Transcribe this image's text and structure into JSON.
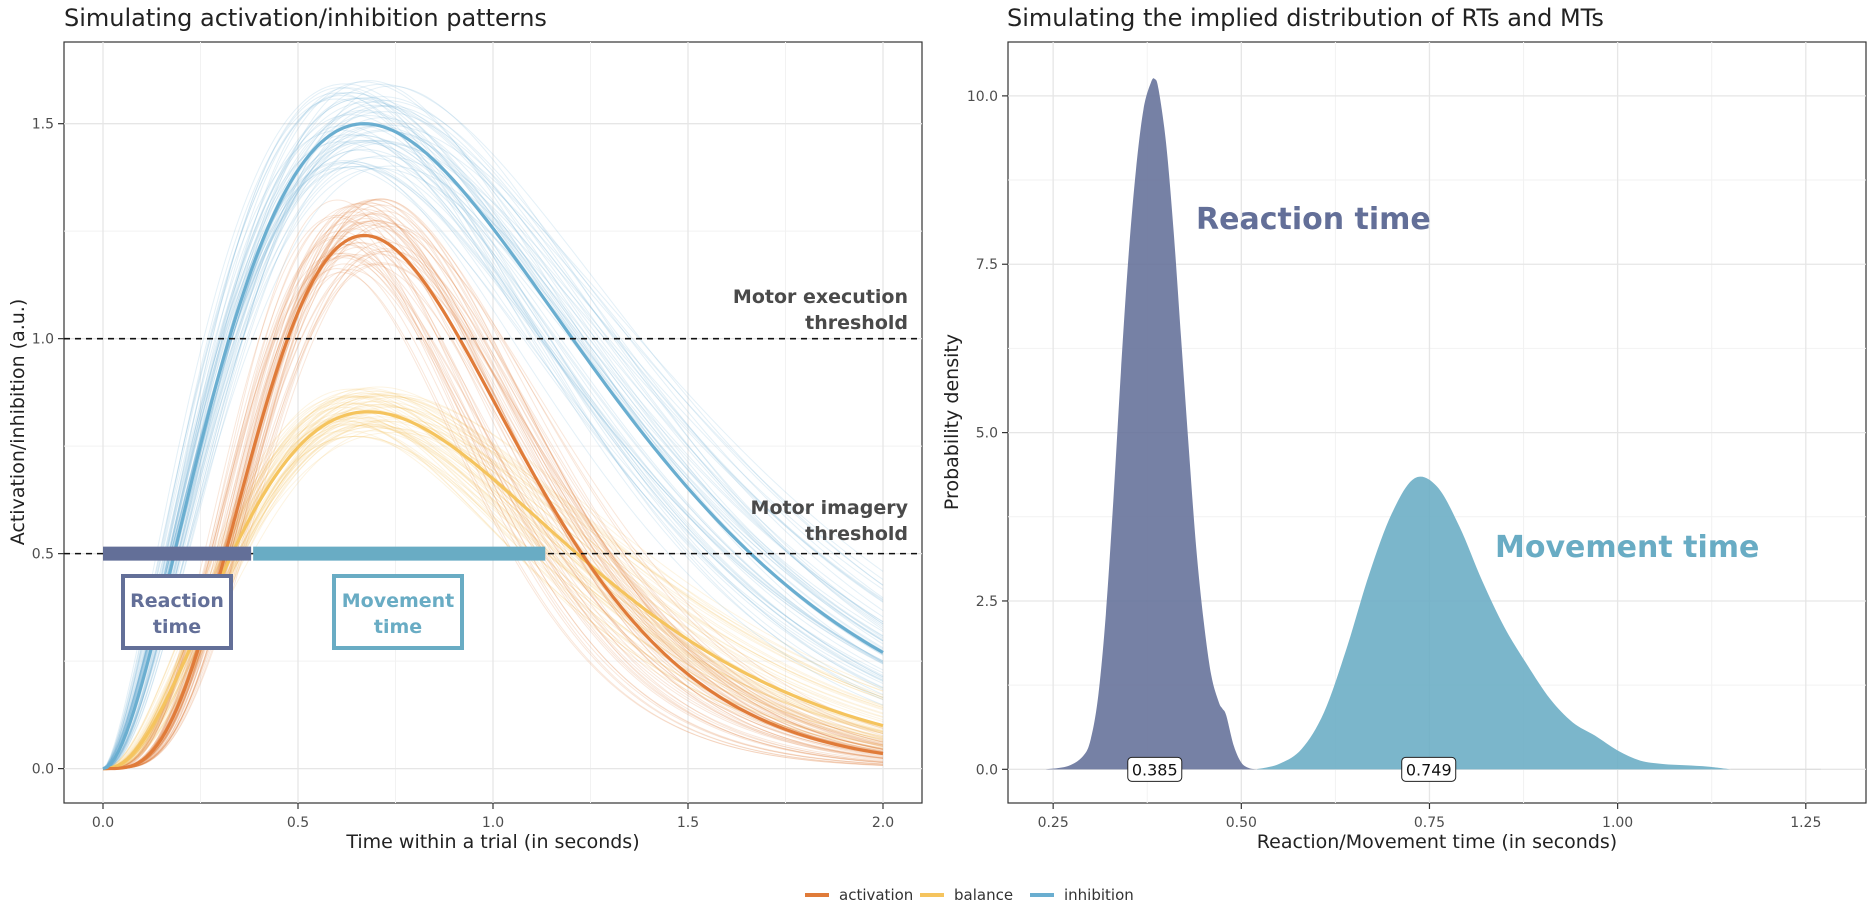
{
  "colors": {
    "activation": "#e07b39",
    "balance": "#f5c45e",
    "inhibition": "#6aaed0",
    "reaction": "#636f98",
    "movement": "#69acc4"
  },
  "chart_data": [
    {
      "type": "line",
      "title": "Simulating activation/inhibition patterns",
      "xlabel": "Time within a trial (in seconds)",
      "ylabel": "Activation/inhibition (a.u.)",
      "xlim": [
        -0.1,
        2.1
      ],
      "ylim": [
        -0.08,
        1.69
      ],
      "xticks": [
        0,
        0.5,
        1,
        1.5,
        2
      ],
      "xtick_labels": [
        "0.0",
        "0.5",
        "1.0",
        "1.5",
        "2.0"
      ],
      "yticks": [
        0,
        0.5,
        1,
        1.5
      ],
      "ytick_labels": [
        "0.0",
        "0.5",
        "1.0",
        "1.5"
      ],
      "grid": true,
      "legend_position": "bottom",
      "series": [
        {
          "name": "activation",
          "peak": 1.24,
          "peak_time": 0.67,
          "final_value": 0.035
        },
        {
          "name": "balance",
          "peak": 0.83,
          "peak_time": 0.68,
          "final_value": 0.1
        },
        {
          "name": "inhibition",
          "peak": 1.5,
          "peak_time": 0.67,
          "final_value": 0.27
        }
      ],
      "thresholds": [
        {
          "y": 1.0,
          "label_line1": "Motor execution",
          "label_line2": "threshold"
        },
        {
          "y": 0.5,
          "label_line1": "Motor imagery",
          "label_line2": "threshold"
        }
      ],
      "segments": [
        {
          "key": "reaction",
          "x_start": 0.0,
          "x_end": 0.385,
          "y": 0.5,
          "label_line1": "Reaction",
          "label_line2": "time"
        },
        {
          "key": "movement",
          "x_start": 0.385,
          "x_end": 1.134,
          "y": 0.5,
          "label_line1": "Movement",
          "label_line2": "time"
        }
      ]
    },
    {
      "type": "area",
      "title": "Simulating the implied distribution of RTs and MTs",
      "xlabel": "Reaction/Movement time (in seconds)",
      "ylabel": "Probability density",
      "xlim": [
        0.19,
        1.33
      ],
      "ylim": [
        -0.5,
        10.8
      ],
      "xticks": [
        0.25,
        0.5,
        0.75,
        1.0,
        1.25
      ],
      "xtick_labels": [
        "0.25",
        "0.50",
        "0.75",
        "1.00",
        "1.25"
      ],
      "yticks": [
        0,
        2.5,
        5,
        7.5,
        10
      ],
      "ytick_labels": [
        "0.0",
        "2.5",
        "5.0",
        "7.5",
        "10.0"
      ],
      "grid": true,
      "series": [
        {
          "name": "Reaction time",
          "key": "reaction",
          "x": [
            0.24,
            0.27,
            0.29,
            0.3,
            0.31,
            0.32,
            0.33,
            0.34,
            0.35,
            0.36,
            0.37,
            0.38,
            0.385,
            0.39,
            0.4,
            0.41,
            0.42,
            0.43,
            0.44,
            0.45,
            0.46,
            0.47,
            0.475,
            0.48,
            0.49,
            0.5,
            0.51,
            0.52
          ],
          "y": [
            0,
            0.05,
            0.2,
            0.45,
            1.1,
            2.3,
            4.0,
            5.9,
            7.6,
            8.9,
            9.8,
            10.2,
            10.25,
            10.1,
            9.3,
            8.0,
            6.4,
            4.8,
            3.3,
            2.2,
            1.4,
            1.0,
            0.9,
            0.8,
            0.35,
            0.1,
            0.02,
            0
          ]
        },
        {
          "name": "Movement time",
          "key": "movement",
          "x": [
            0.52,
            0.55,
            0.58,
            0.61,
            0.64,
            0.67,
            0.7,
            0.73,
            0.76,
            0.79,
            0.82,
            0.85,
            0.88,
            0.91,
            0.94,
            0.97,
            1.0,
            1.03,
            1.06,
            1.09,
            1.12,
            1.15
          ],
          "y": [
            0,
            0.08,
            0.3,
            0.85,
            1.8,
            2.9,
            3.8,
            4.32,
            4.2,
            3.6,
            2.8,
            2.1,
            1.55,
            1.05,
            0.7,
            0.5,
            0.28,
            0.13,
            0.08,
            0.06,
            0.04,
            0
          ]
        }
      ],
      "medians": [
        {
          "key": "reaction",
          "x": 0.385,
          "label": "0.385"
        },
        {
          "key": "movement",
          "x": 0.749,
          "label": "0.749"
        }
      ]
    }
  ],
  "legend": {
    "items": [
      {
        "key": "activation",
        "label": "activation"
      },
      {
        "key": "balance",
        "label": "balance"
      },
      {
        "key": "inhibition",
        "label": "inhibition"
      }
    ]
  }
}
